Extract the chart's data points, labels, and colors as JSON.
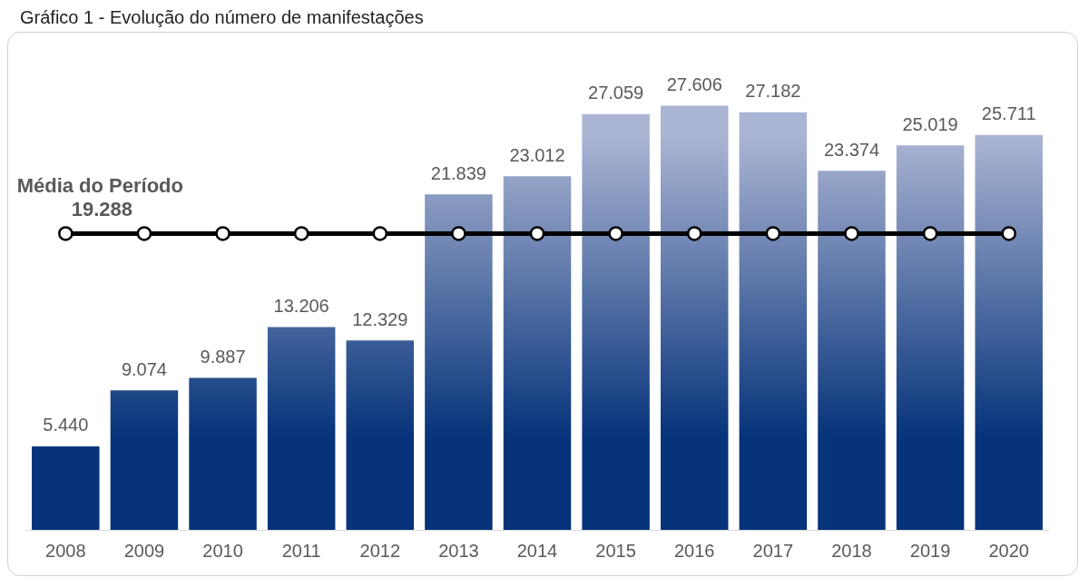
{
  "chart_data": {
    "type": "bar",
    "title": "Gráfico 1 - Evolução do número de manifestações",
    "categories": [
      "2008",
      "2009",
      "2010",
      "2011",
      "2012",
      "2013",
      "2014",
      "2015",
      "2016",
      "2017",
      "2018",
      "2019",
      "2020"
    ],
    "series": [
      {
        "color": "#06337a",
        "values": [
          5440,
          9074,
          9887,
          13206,
          12329,
          21839,
          23012,
          27059,
          27606,
          27182,
          23374,
          25019,
          25711
        ],
        "value_labels": [
          "5.440",
          "9.074",
          "9.887",
          "13.206",
          "12.329",
          "21.839",
          "23.012",
          "27.059",
          "27.606",
          "27.182",
          "23.374",
          "25.019",
          "25.711"
        ]
      },
      {
        "type": "line",
        "name": "Média do Período",
        "color": "#000000",
        "marker": "circle",
        "values": [
          19288,
          19288,
          19288,
          19288,
          19288,
          19288,
          19288,
          19288,
          19288,
          19288,
          19288,
          19288,
          19288
        ],
        "value_labels": [
          "19.288",
          null,
          null,
          null,
          null,
          null,
          null,
          null,
          null,
          null,
          null,
          null,
          null
        ]
      }
    ],
    "legend": false,
    "grid": false
  }
}
